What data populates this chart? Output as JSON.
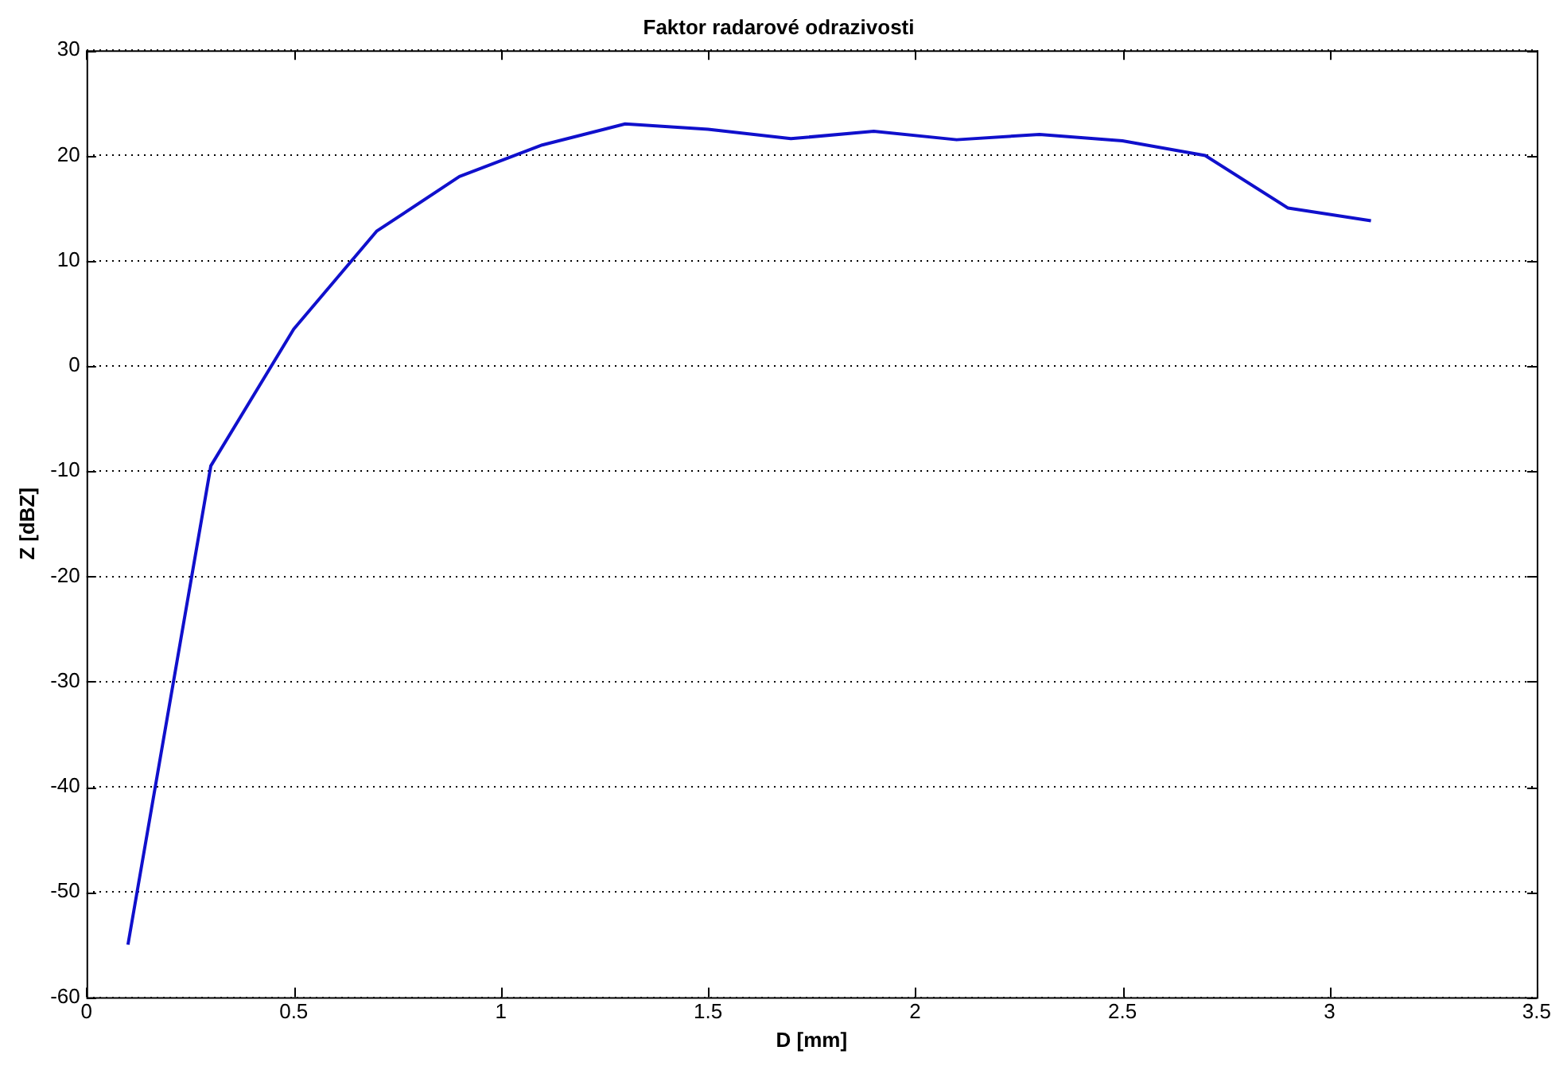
{
  "chart_data": {
    "type": "line",
    "title": "Faktor radarové odrazivosti",
    "xlabel": "D [mm]",
    "ylabel": "Z [dBZ]",
    "x": [
      0.1,
      0.3,
      0.5,
      0.7,
      0.9,
      1.1,
      1.3,
      1.5,
      1.7,
      1.9,
      2.1,
      2.3,
      2.5,
      2.7,
      2.9,
      3.1
    ],
    "series": [
      {
        "color": "#1010cc",
        "values": [
          -55,
          -9.5,
          3.5,
          12.8,
          18,
          21,
          23,
          22.5,
          21.6,
          22.3,
          21.5,
          22,
          21.4,
          20,
          15,
          13.8
        ]
      }
    ],
    "xlim": [
      0,
      3.5
    ],
    "xticks": [
      0,
      0.5,
      1,
      1.5,
      2,
      2.5,
      3,
      3.5
    ],
    "ylim": [
      -60,
      30
    ],
    "yticks": [
      -60,
      -50,
      -40,
      -30,
      -20,
      -10,
      0,
      10,
      20,
      30
    ],
    "grid": "y",
    "legend": false,
    "marker": "none",
    "line_style": "solid"
  }
}
